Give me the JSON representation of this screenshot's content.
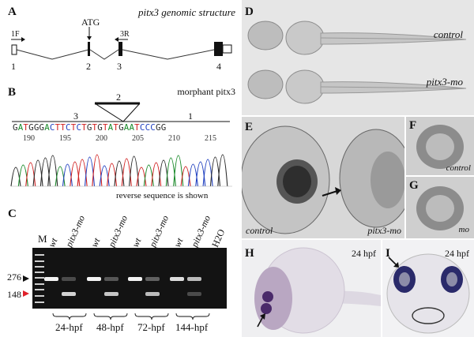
{
  "panels": {
    "A": {
      "label": "A",
      "title": "pitx3 genomic structure",
      "atg": "ATG",
      "primer_f": "1F",
      "primer_r": "3R",
      "exons": [
        "1",
        "2",
        "3",
        "4"
      ]
    },
    "B": {
      "label": "B",
      "title": "morphant pitx3",
      "exon_left": "3",
      "exon_mid": "2",
      "exon_right": "1",
      "sequence": [
        {
          "base": "G",
          "color": "#2a2a2a"
        },
        {
          "base": "A",
          "color": "#1a8a2a"
        },
        {
          "base": "T",
          "color": "#d02020"
        },
        {
          "base": "G",
          "color": "#2a2a2a"
        },
        {
          "base": "G",
          "color": "#2a2a2a"
        },
        {
          "base": "G",
          "color": "#2a2a2a"
        },
        {
          "base": "A",
          "color": "#1a8a2a"
        },
        {
          "base": "C",
          "color": "#2040c0"
        },
        {
          "base": "T",
          "color": "#d02020"
        },
        {
          "base": "T",
          "color": "#d02020"
        },
        {
          "base": "C",
          "color": "#2040c0"
        },
        {
          "base": "T",
          "color": "#d02020"
        },
        {
          "base": "C",
          "color": "#2040c0"
        },
        {
          "base": "T",
          "color": "#d02020"
        },
        {
          "base": "G",
          "color": "#2a2a2a"
        },
        {
          "base": "T",
          "color": "#d02020"
        },
        {
          "base": "G",
          "color": "#2a2a2a"
        },
        {
          "base": "T",
          "color": "#d02020"
        },
        {
          "base": "A",
          "color": "#1a8a2a"
        },
        {
          "base": "T",
          "color": "#d02020"
        },
        {
          "base": "G",
          "color": "#2a2a2a"
        },
        {
          "base": "A",
          "color": "#1a8a2a"
        },
        {
          "base": "A",
          "color": "#1a8a2a"
        },
        {
          "base": "T",
          "color": "#d02020"
        },
        {
          "base": "C",
          "color": "#2040c0"
        },
        {
          "base": "C",
          "color": "#2040c0"
        },
        {
          "base": "C",
          "color": "#2040c0"
        },
        {
          "base": "G",
          "color": "#2a2a2a"
        },
        {
          "base": "G",
          "color": "#2a2a2a"
        }
      ],
      "positions": [
        "190",
        "195",
        "200",
        "205",
        "210",
        "215"
      ],
      "caption": "reverse sequence is shown"
    },
    "C": {
      "label": "C",
      "marker": "M",
      "lanes": [
        "wt",
        "pitx3-mo",
        "wt",
        "pitx3-mo",
        "wt",
        "pitx3-mo",
        "wt",
        "pitx3-mo",
        "H2O"
      ],
      "size_upper": "276",
      "size_lower": "148",
      "upper_arrow_color": "#111111",
      "lower_arrow_color": "#e0202a",
      "timepoints": [
        "24-hpf",
        "48-hpf",
        "72-hpf",
        "144-hpf"
      ]
    },
    "D": {
      "label": "D",
      "top_caption": "control",
      "bottom_caption": "pitx3-mo"
    },
    "E": {
      "label": "E",
      "left_caption": "control",
      "right_caption": "pitx3-mo"
    },
    "F": {
      "label": "F",
      "caption": "control"
    },
    "G": {
      "label": "G",
      "caption": "mo"
    },
    "H": {
      "label": "H",
      "stage": "24 hpf",
      "stain_color": "#4a2a6a"
    },
    "I": {
      "label": "I",
      "stage": "24 hpf",
      "stain_color": "#2a2a6a"
    }
  }
}
